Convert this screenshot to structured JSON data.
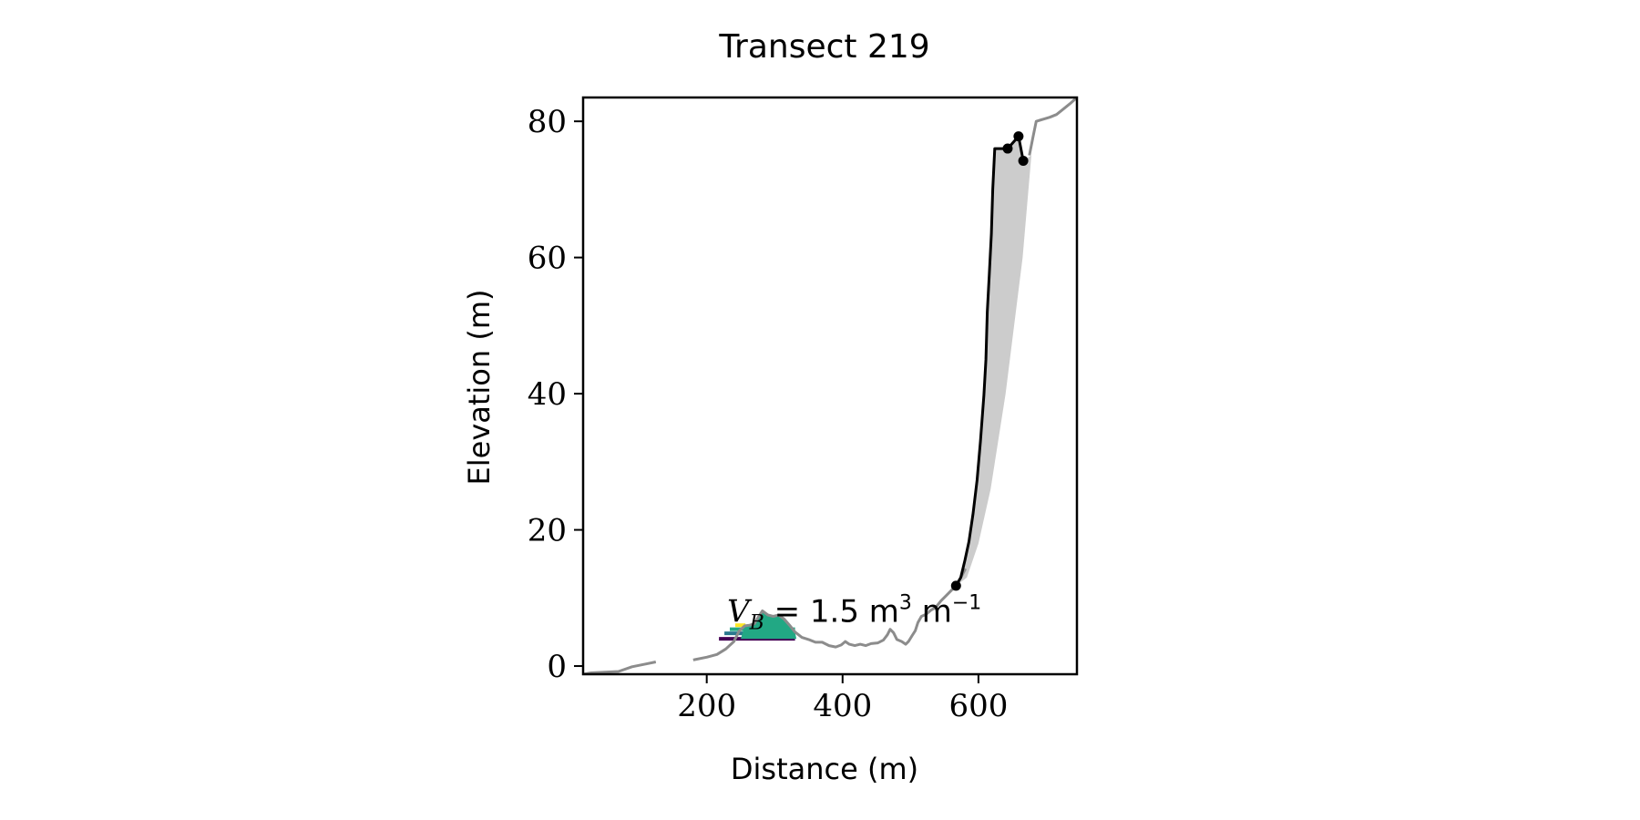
{
  "chart_data": {
    "type": "line",
    "title": "Transect 219",
    "xlabel": "Distance (m)",
    "ylabel": "Elevation (m)",
    "xlim": [
      18,
      745
    ],
    "ylim": [
      -1.2,
      83.5
    ],
    "xticks": [
      200,
      400,
      600
    ],
    "yticks": [
      0,
      20,
      40,
      60,
      80
    ],
    "grid": false,
    "legend": "none",
    "colors": {
      "profile": "#8c8c8c",
      "cliff": "#000000",
      "fill": "#cccccc",
      "levels": [
        "#440154",
        "#2a788e",
        "#22a884",
        "#fde725"
      ]
    },
    "annotation": {
      "text_var": "V",
      "text_sub": "B",
      "text_value": " = 1.5 m",
      "text_exp1": "3",
      "text_mid": " m",
      "text_exp2": "−1",
      "x": 230,
      "y": 6.5
    },
    "series": [
      {
        "role": "profile",
        "segments": [
          [
            [
              18,
              -1.2
            ],
            [
              30,
              -1.0
            ],
            [
              50,
              -0.9
            ],
            [
              70,
              -0.8
            ],
            [
              90,
              -0.1
            ],
            [
              110,
              0.3
            ],
            [
              125,
              0.6
            ]
          ],
          [
            [
              180,
              0.9
            ],
            [
              200,
              1.3
            ],
            [
              215,
              1.7
            ],
            [
              228,
              2.5
            ],
            [
              240,
              3.6
            ],
            [
              248,
              5.2
            ],
            [
              256,
              5.9
            ],
            [
              263,
              6.0
            ],
            [
              270,
              6.2
            ],
            [
              276,
              7.2
            ],
            [
              282,
              8.1
            ],
            [
              290,
              7.5
            ],
            [
              298,
              7.3
            ],
            [
              306,
              7.5
            ],
            [
              314,
              6.9
            ],
            [
              322,
              6.0
            ],
            [
              330,
              5.0
            ],
            [
              340,
              4.2
            ],
            [
              350,
              3.9
            ],
            [
              360,
              3.5
            ],
            [
              370,
              3.5
            ],
            [
              380,
              3.0
            ],
            [
              390,
              2.8
            ],
            [
              398,
              3.1
            ],
            [
              404,
              3.6
            ],
            [
              410,
              3.2
            ],
            [
              418,
              3.0
            ],
            [
              426,
              3.2
            ],
            [
              434,
              3.0
            ],
            [
              442,
              3.3
            ],
            [
              452,
              3.4
            ],
            [
              460,
              3.8
            ],
            [
              466,
              4.6
            ],
            [
              470,
              5.4
            ],
            [
              475,
              4.9
            ],
            [
              480,
              3.9
            ],
            [
              487,
              3.6
            ],
            [
              493,
              3.2
            ],
            [
              497,
              3.6
            ],
            [
              502,
              4.4
            ],
            [
              507,
              5.2
            ],
            [
              511,
              6.4
            ],
            [
              516,
              7.3
            ],
            [
              523,
              7.6
            ],
            [
              530,
              8.2
            ],
            [
              537,
              8.6
            ],
            [
              545,
              9.6
            ],
            [
              553,
              10.4
            ],
            [
              561,
              11.2
            ],
            [
              567,
              11.8
            ],
            [
              574,
              13.0
            ],
            [
              581,
              14.3
            ]
          ],
          [
            [
              675,
              75.0
            ],
            [
              680,
              77.5
            ],
            [
              685,
              80.0
            ],
            [
              695,
              80.3
            ],
            [
              705,
              80.6
            ],
            [
              715,
              81.0
            ],
            [
              725,
              81.8
            ],
            [
              735,
              82.6
            ],
            [
              745,
              83.5
            ]
          ]
        ]
      },
      {
        "role": "cliff",
        "points": [
          [
            567,
            11.8
          ],
          [
            574,
            13.0
          ],
          [
            580,
            15.5
          ],
          [
            586,
            18.3
          ],
          [
            592,
            22.3
          ],
          [
            598,
            27.3
          ],
          [
            603,
            33.0
          ],
          [
            608,
            39.8
          ],
          [
            611,
            45.0
          ],
          [
            613,
            52.0
          ],
          [
            616,
            57.5
          ],
          [
            619,
            63.5
          ],
          [
            621,
            70.0
          ],
          [
            624,
            76.0
          ],
          [
            643,
            76.0
          ],
          [
            659,
            77.8
          ],
          [
            666,
            74.2
          ]
        ],
        "markers": [
          [
            567,
            11.8
          ],
          [
            643,
            76.0
          ],
          [
            659,
            77.8
          ],
          [
            666,
            74.2
          ]
        ]
      }
    ],
    "fill_polygon": [
      [
        567,
        11.8
      ],
      [
        574,
        13.0
      ],
      [
        580,
        15.5
      ],
      [
        586,
        18.3
      ],
      [
        592,
        22.3
      ],
      [
        598,
        27.3
      ],
      [
        603,
        33.0
      ],
      [
        608,
        39.8
      ],
      [
        611,
        45.0
      ],
      [
        613,
        52.0
      ],
      [
        616,
        57.5
      ],
      [
        619,
        63.5
      ],
      [
        621,
        70.0
      ],
      [
        624,
        76.0
      ],
      [
        643,
        76.0
      ],
      [
        659,
        77.8
      ],
      [
        666,
        74.2
      ],
      [
        678,
        75.0
      ],
      [
        665,
        60.0
      ],
      [
        640,
        40.0
      ],
      [
        618,
        26.0
      ],
      [
        600,
        18.0
      ],
      [
        583,
        13.0
      ]
    ],
    "level_bars": [
      {
        "level": 4.0,
        "x0": 218,
        "x1": 330
      },
      {
        "level": 4.8,
        "x0": 226,
        "x1": 330
      },
      {
        "level": 5.4,
        "x0": 234,
        "x1": 330
      },
      {
        "level": 6.0,
        "x0": 242,
        "x1": 257
      }
    ],
    "filled_dune": [
      [
        250,
        4.0
      ],
      [
        256,
        5.9
      ],
      [
        263,
        6.0
      ],
      [
        270,
        6.2
      ],
      [
        276,
        7.2
      ],
      [
        282,
        8.1
      ],
      [
        290,
        7.5
      ],
      [
        298,
        7.3
      ],
      [
        306,
        7.5
      ],
      [
        314,
        6.9
      ],
      [
        322,
        6.0
      ],
      [
        330,
        5.0
      ],
      [
        332,
        4.0
      ]
    ]
  }
}
